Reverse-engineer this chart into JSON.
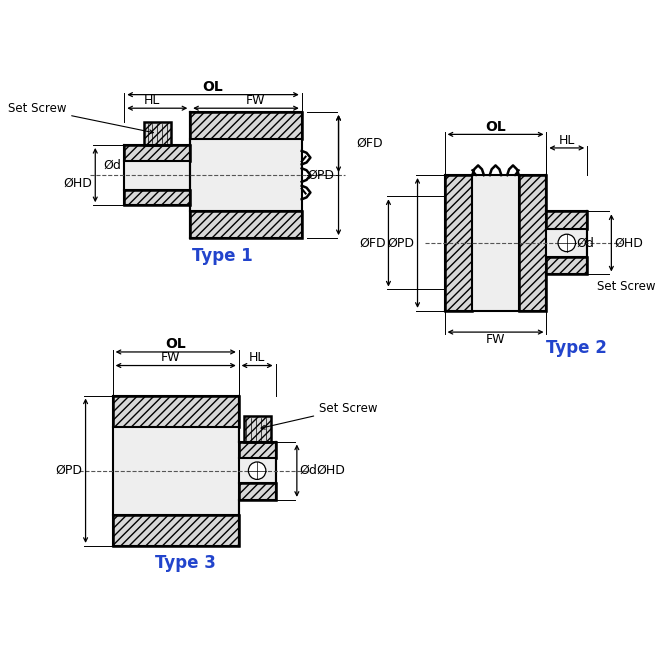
{
  "bg_color": "#ffffff",
  "type_color": "#2244cc",
  "type1_label": "Type 1",
  "type2_label": "Type 2",
  "type3_label": "Type 3",
  "hatch": "////",
  "face_color": "#d8d8d8",
  "bore_color": "#eeeeee"
}
